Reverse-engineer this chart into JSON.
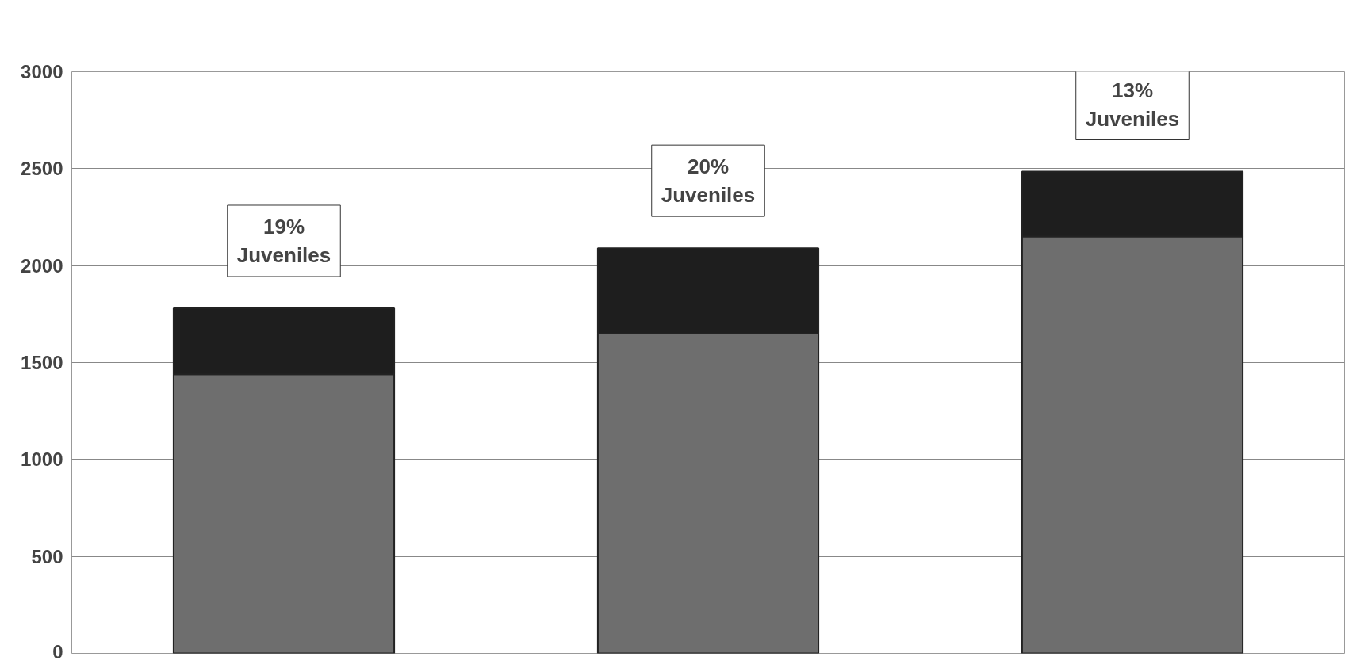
{
  "chart_data": {
    "type": "bar",
    "stacked": true,
    "categories": [
      null,
      null,
      null
    ],
    "series": [
      {
        "color": "#6e6e6e",
        "values": [
          1440,
          1650,
          2150
        ]
      },
      {
        "color": "#1e1e1e",
        "values": [
          340,
          440,
          335
        ]
      }
    ],
    "ylim": [
      0,
      3000
    ],
    "yticks": [
      0,
      500,
      1000,
      1500,
      2000,
      2500,
      3000
    ],
    "grid": "y",
    "tick_labels": "y",
    "annotations": [
      "19%\nJuveniles",
      "20%\nJuveniles",
      "13%\nJuveniles"
    ]
  }
}
